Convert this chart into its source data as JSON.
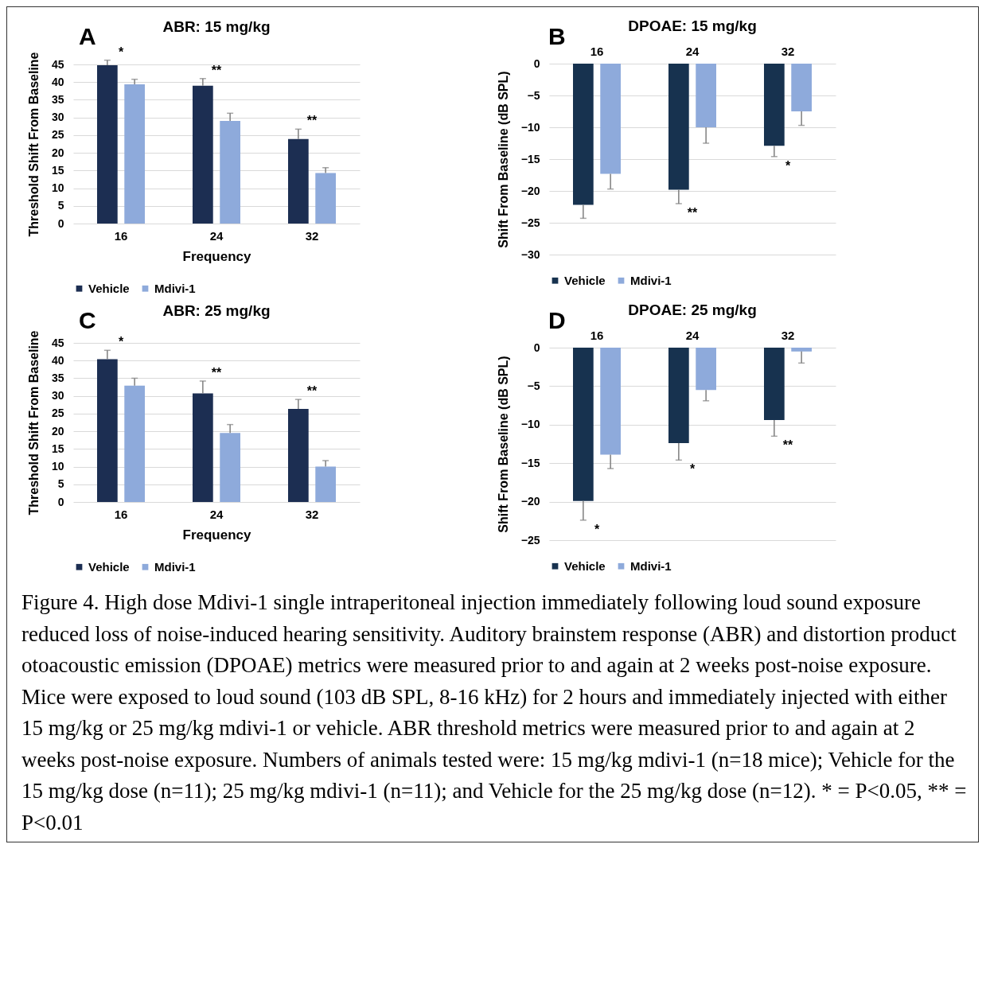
{
  "chart_data": [
    {
      "type": "bar",
      "title": "ABR: 15 mg/kg",
      "xlabel": "Frequency",
      "ylabel": "Threshold Shift From Baseline",
      "categories": [
        "16",
        "24",
        "32"
      ],
      "series": [
        {
          "name": "Vehicle",
          "color": "#1c2e52",
          "values": [
            44.8,
            39.0,
            23.9
          ],
          "errors": [
            [
              44.8,
              46.2
            ],
            [
              39.0,
              41.0
            ],
            [
              23.9,
              26.7
            ]
          ]
        },
        {
          "name": "Mdivi-1",
          "color": "#8eaadb",
          "values": [
            39.4,
            29.0,
            14.3
          ],
          "errors": [
            [
              39.4,
              40.8
            ],
            [
              29.0,
              31.2
            ],
            [
              14.3,
              15.8
            ]
          ]
        }
      ],
      "ylim": [
        0,
        45
      ],
      "yticks": [
        0,
        5,
        10,
        15,
        20,
        25,
        30,
        35,
        40,
        45
      ],
      "grid": "y",
      "legend": "bottom",
      "annotations": [
        "A",
        "*",
        "**",
        "**"
      ]
    },
    {
      "type": "bar",
      "title": "DPOAE: 15 mg/kg",
      "ylabel": "Shift From Baseline (dB SPL)",
      "categories": [
        "16",
        "24",
        "32"
      ],
      "series": [
        {
          "name": "Vehicle",
          "color": "#17324f",
          "values": [
            -22.2,
            -19.8,
            -12.9
          ],
          "errors": [
            [
              -24.3,
              -22.2
            ],
            [
              -22.0,
              -19.8
            ],
            [
              -14.6,
              -12.9
            ]
          ]
        },
        {
          "name": "Mdivi-1",
          "color": "#8eaadb",
          "values": [
            -17.3,
            -10.0,
            -7.5
          ],
          "errors": [
            [
              -19.7,
              -17.3
            ],
            [
              -12.5,
              -10.0
            ],
            [
              -9.7,
              -7.5
            ]
          ]
        }
      ],
      "ylim": [
        -30,
        0
      ],
      "yticks": [
        -30,
        -25,
        -20,
        -15,
        -10,
        -5,
        0
      ],
      "grid": "y",
      "legend": "bottom",
      "annotations": [
        "B",
        "**",
        "*"
      ]
    },
    {
      "type": "bar",
      "title": "ABR: 25 mg/kg",
      "xlabel": "Frequency",
      "ylabel": "Threshold Shift From Baseline",
      "categories": [
        "16",
        "24",
        "32"
      ],
      "series": [
        {
          "name": "Vehicle",
          "color": "#1c2e52",
          "values": [
            40.4,
            30.7,
            26.3
          ],
          "errors": [
            [
              40.4,
              42.9
            ],
            [
              30.7,
              34.2
            ],
            [
              26.3,
              29.0
            ]
          ]
        },
        {
          "name": "Mdivi-1",
          "color": "#8eaadb",
          "values": [
            32.9,
            19.5,
            10.0
          ],
          "errors": [
            [
              32.9,
              35.0
            ],
            [
              19.5,
              21.9
            ],
            [
              10.0,
              11.7
            ]
          ]
        }
      ],
      "ylim": [
        0,
        45
      ],
      "yticks": [
        0,
        5,
        10,
        15,
        20,
        25,
        30,
        35,
        40,
        45
      ],
      "grid": "y",
      "legend": "bottom",
      "annotations": [
        "C",
        "*",
        "**",
        "**"
      ]
    },
    {
      "type": "bar",
      "title": "DPOAE: 25 mg/kg",
      "ylabel": "Shift From Baseline (dB SPL)",
      "categories": [
        "16",
        "24",
        "32"
      ],
      "series": [
        {
          "name": "Vehicle",
          "color": "#17324f",
          "values": [
            -19.9,
            -12.4,
            -9.4
          ],
          "errors": [
            [
              -22.4,
              -19.9
            ],
            [
              -14.6,
              -12.4
            ],
            [
              -11.5,
              -9.4
            ]
          ]
        },
        {
          "name": "Mdivi-1",
          "color": "#8eaadb",
          "values": [
            -13.9,
            -5.5,
            -0.5
          ],
          "errors": [
            [
              -15.7,
              -13.9
            ],
            [
              -6.9,
              -5.5
            ],
            [
              -2.0,
              -0.5
            ]
          ]
        }
      ],
      "ylim": [
        -25,
        0
      ],
      "yticks": [
        -25,
        -20,
        -15,
        -10,
        -5,
        0
      ],
      "grid": "y",
      "legend": "bottom",
      "annotations": [
        "D",
        "*",
        "*",
        "**",
        "Figure 4.  High dose Mdivi-1 single intraperitoneal injection immediately following loud sound exposure reduced loss of noise-induced hearing sensitivity. Auditory brainstem response (ABR) and distortion product otoacoustic emission (DPOAE) metrics were measured prior to and again at 2 weeks post-noise exposure. Mice were exposed to loud sound (103 dB SPL, 8-16 kHz) for 2 hours and immediately injected with either 15 mg/kg or 25 mg/kg mdivi-1 or vehicle. ABR threshold metrics were measured prior to and again at 2 weeks post-noise exposure.  Numbers of animals tested were: 15 mg/kg mdivi-1 (n=18 mice); Vehicle for the 15 mg/kg dose (n=11); 25 mg/kg mdivi-1 (n=11); and Vehicle for the 25 mg/kg dose (n=12). * = P<0.05, ** = P<0.01"
      ]
    }
  ]
}
